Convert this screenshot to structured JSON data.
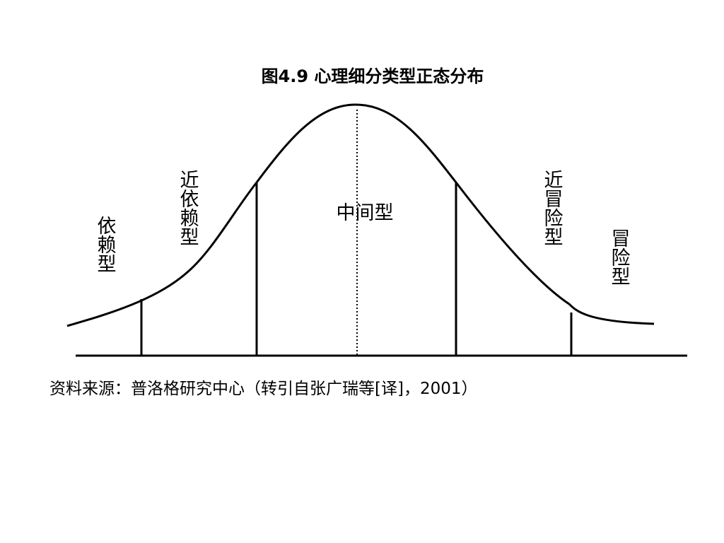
{
  "title": "图4.9 心理细分类型正态分布",
  "segments": [
    {
      "label": "依赖型"
    },
    {
      "label": "近依赖型"
    },
    {
      "label": "中间型"
    },
    {
      "label": "近冒险型"
    },
    {
      "label": "冒险型"
    }
  ],
  "source": "资料来源：普洛格研究中心（转引自张广瑞等[译]，2001）"
}
